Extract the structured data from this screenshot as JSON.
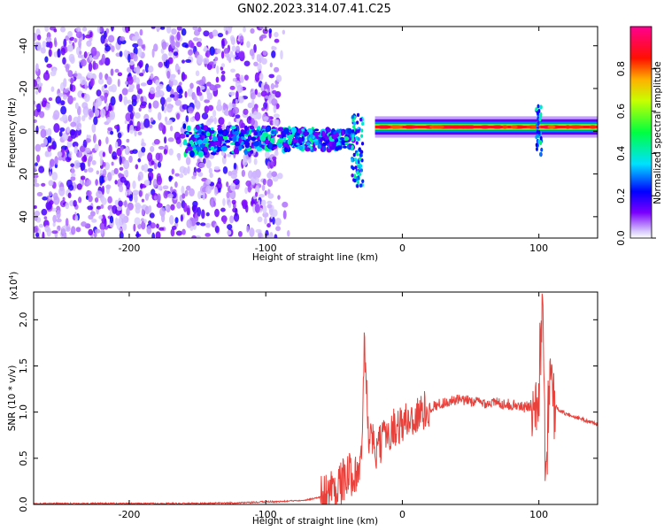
{
  "figure": {
    "title": "GN02.2023.314.07.41.C25"
  },
  "chart_data": [
    {
      "type": "heatmap",
      "title": "GN02.2023.314.07.41.C25",
      "xlabel": "Height of straight line (km)",
      "ylabel": "Frequency (Hz)",
      "xlim": [
        -270,
        143
      ],
      "ylim": [
        -50,
        49
      ],
      "xticks": [
        -200,
        -100,
        0,
        100
      ],
      "yticks": [
        -40,
        -20,
        0,
        20,
        40
      ],
      "colorbar": {
        "label": "Normalized spectral amplitude",
        "range": [
          0.0,
          1.0
        ],
        "ticks": [
          0.0,
          0.2,
          0.4,
          0.6,
          0.8
        ],
        "tick_labels": [
          "0.0",
          "0.2",
          "0.4",
          "0.6",
          "0.8"
        ],
        "colormap": "gist_rainbow (white at 0, violet → blue → cyan → green → yellow → red → magenta)"
      },
      "features": [
        {
          "name": "diffuse noise",
          "x_range": [
            -270,
            -90
          ],
          "y_range": [
            -50,
            49
          ],
          "amplitude": 0.1
        },
        {
          "name": "central band",
          "x_range": [
            -160,
            -35
          ],
          "y_center": -4,
          "amplitude": 0.3
        },
        {
          "name": "main signal line",
          "x_range": [
            -20,
            143
          ],
          "y_center": 2,
          "amplitude": 0.85
        },
        {
          "name": "tail at -30 km",
          "x": -33,
          "y_range": [
            -26,
            8
          ],
          "amplitude": 0.4
        },
        {
          "name": "feature near 100 km",
          "x": 100,
          "y_range": [
            -12,
            12
          ],
          "amplitude": 0.4
        }
      ]
    },
    {
      "type": "line",
      "title": "",
      "xlabel": "Height of straight line (km)",
      "ylabel": "SNR (10 * v/v)",
      "y_scale_label": "(x10^4)",
      "y_scale_base": "(x10",
      "y_scale_exp": "4",
      "y_scale_close": ")",
      "xlim": [
        -270,
        143
      ],
      "ylim": [
        0.0,
        2.3
      ],
      "xticks": [
        -200,
        -100,
        0,
        100
      ],
      "yticks": [
        0.0,
        0.5,
        1.0,
        1.5,
        2.0
      ],
      "ytick_labels": [
        "0.0",
        "0.5",
        "1.0",
        "1.5",
        "2.0"
      ],
      "color": "#e8403a",
      "series": [
        {
          "x": [
            -270,
            -240,
            -200,
            -150,
            -110,
            -100,
            -90,
            -70,
            -60,
            -50,
            -40,
            -30,
            -28,
            -25,
            -20,
            -10,
            0,
            10,
            20,
            30,
            40,
            50,
            60,
            70,
            80,
            90,
            95,
            100,
            103,
            105,
            108,
            110,
            115,
            120,
            130,
            143
          ],
          "y": [
            0.01,
            0.01,
            0.01,
            0.01,
            0.02,
            0.03,
            0.03,
            0.05,
            0.08,
            0.18,
            0.3,
            0.42,
            1.75,
            0.8,
            0.55,
            0.8,
            0.88,
            0.95,
            1.05,
            1.1,
            1.13,
            1.12,
            1.1,
            1.1,
            1.08,
            1.05,
            1.08,
            1.35,
            2.3,
            0.25,
            1.6,
            1.1,
            1.02,
            0.98,
            0.93,
            0.87
          ]
        }
      ]
    }
  ],
  "ticks": {
    "x": [
      "-200",
      "-100",
      "0",
      "100"
    ],
    "y_top": [
      "40",
      "20",
      "0",
      "-20",
      "-40"
    ]
  }
}
